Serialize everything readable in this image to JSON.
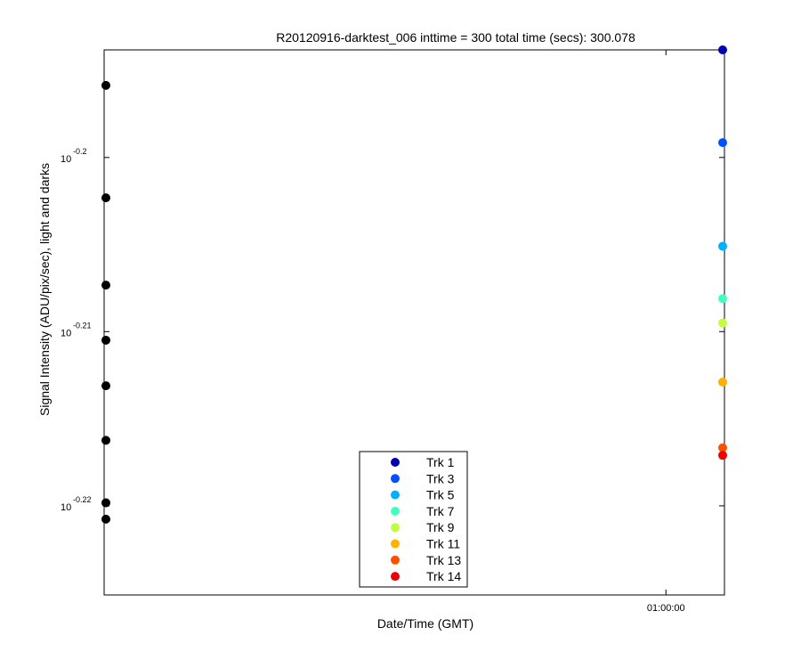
{
  "chart_data": {
    "type": "scatter",
    "title": "R20120916-darktest_006 inttime = 300 total time (secs): 300.078",
    "xlabel": "Date/Time (GMT)",
    "ylabel": "Signal Intensity (ADU/pix/sec), light and darks",
    "yscale": "log",
    "ylim": [
      0.5955,
      0.64
    ],
    "y_ticks": [
      {
        "base": "10",
        "exponent": "-0.2",
        "value": 0.63096
      },
      {
        "base": "10",
        "exponent": "-0.21",
        "value": 0.6166
      },
      {
        "base": "10",
        "exponent": "-0.22",
        "value": 0.60256
      }
    ],
    "x_ticks": [
      {
        "label": "01:00:00",
        "value": "01:00:00"
      }
    ],
    "xlim": [
      "00:00:00",
      "01:06:15"
    ],
    "grid": false,
    "legend_position": "bottom-center",
    "darks": {
      "color": "#000000",
      "x": "00:00:00",
      "values": [
        0.637,
        0.6276,
        0.6204,
        0.6159,
        0.6122,
        0.6078,
        0.6028,
        0.6015
      ]
    },
    "series": [
      {
        "name": "Trk 1",
        "color": "#0000b3",
        "x": "01:06:15",
        "value": 0.64
      },
      {
        "name": "Trk 3",
        "color": "#0050ff",
        "x": "01:06:15",
        "value": 0.6322
      },
      {
        "name": "Trk 5",
        "color": "#00b0ff",
        "x": "01:06:15",
        "value": 0.6236
      },
      {
        "name": "Trk 7",
        "color": "#40ffc0",
        "x": "01:06:15",
        "value": 0.6193
      },
      {
        "name": "Trk 9",
        "color": "#c0ff40",
        "x": "01:06:15",
        "value": 0.6173
      },
      {
        "name": "Trk 11",
        "color": "#ffb000",
        "x": "01:06:15",
        "value": 0.6125
      },
      {
        "name": "Trk 13",
        "color": "#ff5000",
        "x": "01:06:15",
        "value": 0.6072
      },
      {
        "name": "Trk 14",
        "color": "#f00000",
        "x": "01:06:15",
        "value": 0.6066
      }
    ]
  }
}
